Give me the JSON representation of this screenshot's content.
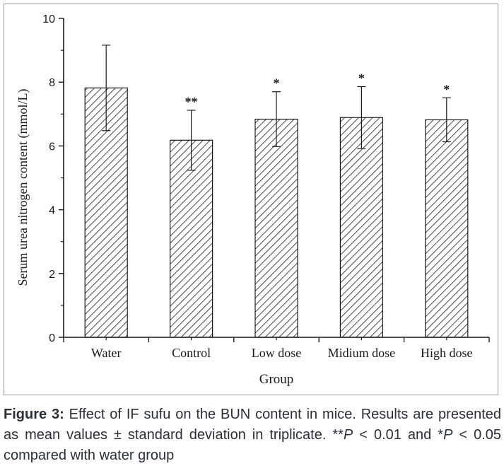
{
  "chart_data": {
    "type": "bar",
    "categories": [
      "Water",
      "Control",
      "Low dose",
      "Midium dose",
      "High dose"
    ],
    "values": [
      7.82,
      6.18,
      6.84,
      6.89,
      6.82
    ],
    "errors": [
      1.34,
      0.94,
      0.86,
      0.97,
      0.69
    ],
    "significance": [
      "",
      "**",
      "*",
      "*",
      "*"
    ],
    "xlabel": "Group",
    "ylabel": "Serum urea nitrogen content (mmol/L)",
    "ylim": [
      0,
      10
    ],
    "yticks": [
      "0",
      "2",
      "4",
      "6",
      "8",
      "10"
    ],
    "bar_fill": "diagonal-hatch",
    "grid": false,
    "colors": {
      "bar_stroke": "#1a1a1a",
      "hatch": "#1a1a1a",
      "axis": "#1a1a1a"
    }
  },
  "caption": {
    "label": "Figure 3:",
    "text_1": " Effect of IF sufu on the BUN content in mice. Results are presented as mean values ± standard deviation in triplicate. **",
    "p1": "P",
    "text_2": " < 0.01 and *",
    "p2": "P",
    "text_3": " < 0.05 compared with water group"
  }
}
